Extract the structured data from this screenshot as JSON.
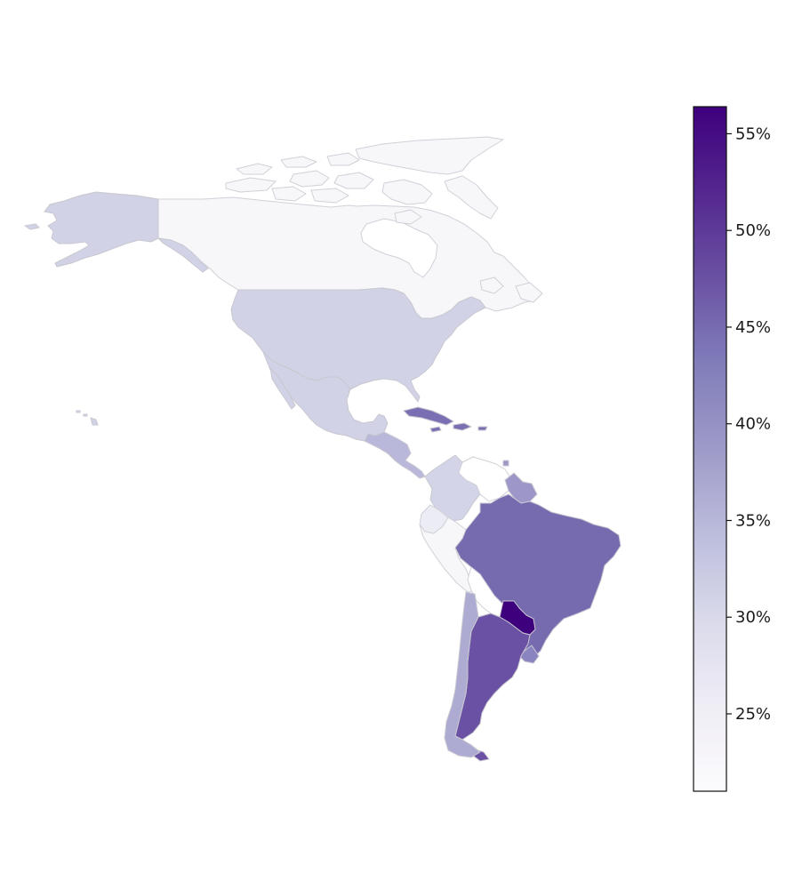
{
  "map": {
    "palette": {
      "canada": "#f7f7fa",
      "usa": "#d1d2e6",
      "mexico": "#d1d2e6",
      "cuba_caribbean": "#7a6fb3",
      "central_america": "#b9b8da",
      "colombia": "#d4d4e9",
      "venezuela": "#ffffff",
      "ecuador": "#ececf4",
      "peru": "#f7f7fa",
      "guyana": "#9c97c8",
      "brazil": "#776bb0",
      "bolivia": "#ffffff",
      "paraguay": "#3f007d",
      "argentina": "#6a51a3",
      "chile": "#aeabd2",
      "uruguay": "#8a84c0"
    }
  },
  "colorbar": {
    "min": 21,
    "max": 56.4,
    "colors": [
      "#fcfbfd",
      "#efedf5",
      "#dadaeb",
      "#bcbddc",
      "#9e9ac8",
      "#807dba",
      "#6a51a3",
      "#54278f",
      "#3f007d"
    ],
    "ticks": [
      {
        "value": 25,
        "label": "25%"
      },
      {
        "value": 30,
        "label": "30%"
      },
      {
        "value": 35,
        "label": "35%"
      },
      {
        "value": 40,
        "label": "40%"
      },
      {
        "value": 45,
        "label": "45%"
      },
      {
        "value": 50,
        "label": "50%"
      },
      {
        "value": 55,
        "label": "55%"
      }
    ]
  }
}
